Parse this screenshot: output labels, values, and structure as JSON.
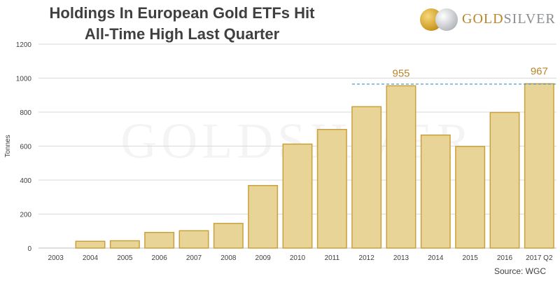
{
  "title_line1": "Holdings In European Gold ETFs Hit",
  "title_line2": "All-Time High Last Quarter",
  "logo": {
    "gold": "GOLD",
    "silver": "SILVER",
    "watermark": "GOLDSILVER"
  },
  "source": "Source: WGC",
  "colors": {
    "bar_fill": "#e9d498",
    "bar_stroke": "#c9a13a",
    "grid": "#d9d9d9",
    "reference_line": "#4a9bd1",
    "annotation": "#b8862a",
    "text": "#404040"
  },
  "chart_data": {
    "type": "bar",
    "categories": [
      "2003",
      "2004",
      "2005",
      "2006",
      "2007",
      "2008",
      "2009",
      "2010",
      "2011",
      "2012",
      "2013",
      "2014",
      "2015",
      "2016",
      "2017 Q2"
    ],
    "values": [
      0,
      40,
      43,
      92,
      102,
      145,
      368,
      612,
      698,
      832,
      955,
      665,
      598,
      798,
      967
    ],
    "ylabel": "Tonnes",
    "xlabel": "",
    "ylim": [
      0,
      1200
    ],
    "yticks": [
      0,
      200,
      400,
      600,
      800,
      1000,
      1200
    ],
    "grid": true,
    "annotations": [
      {
        "category": "2013",
        "label": "955"
      },
      {
        "category": "2017 Q2",
        "label": "967"
      }
    ],
    "reference_line": {
      "value": 967,
      "from_category": "2012",
      "style": "dashed"
    }
  }
}
